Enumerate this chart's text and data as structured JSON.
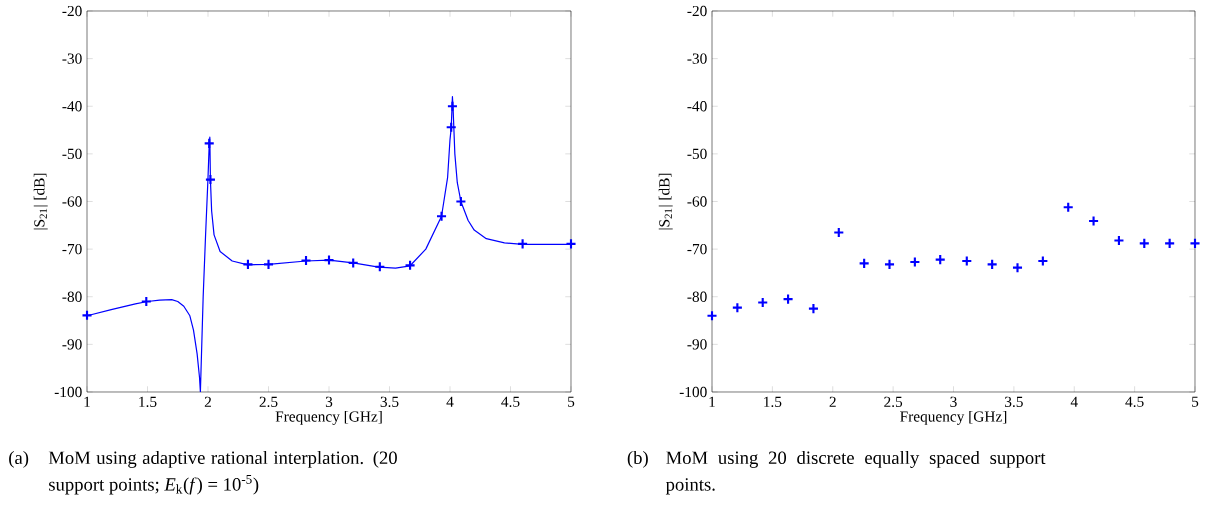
{
  "chart_data": [
    {
      "type": "line",
      "xlabel": "Frequency [GHz]",
      "ylabel": "|S$_{21}$| [dB]",
      "xlim": [
        1,
        5
      ],
      "ylim": [
        -100,
        -20
      ],
      "xticks": [
        1,
        1.5,
        2,
        2.5,
        3,
        3.5,
        4,
        4.5,
        5
      ],
      "yticks": [
        -100,
        -90,
        -80,
        -70,
        -60,
        -50,
        -40,
        -30,
        -20
      ],
      "grid": false,
      "series": [
        {
          "color": "#0000ff",
          "marker": "none",
          "line_style": "solid",
          "x": [
            1,
            1.2,
            1.4,
            1.5,
            1.6,
            1.7,
            1.75,
            1.8,
            1.85,
            1.88,
            1.91,
            1.93,
            1.937,
            1.96,
            1.98,
            2.0,
            2.01,
            2.015,
            2.02,
            2.03,
            2.05,
            2.1,
            2.2,
            2.33,
            2.5,
            2.81,
            3.0,
            3.2,
            3.41,
            3.55,
            3.67,
            3.8,
            3.93,
            3.98,
            4.0,
            4.01,
            4.02,
            4.025,
            4.04,
            4.06,
            4.09,
            4.15,
            4.2,
            4.3,
            4.45,
            4.6,
            5
          ],
          "values": [
            -84,
            -82.7,
            -81.5,
            -81,
            -80.7,
            -80.6,
            -81,
            -82,
            -84,
            -87,
            -92,
            -97,
            -100,
            -80,
            -67,
            -55,
            -48,
            -46.5,
            -55.5,
            -62,
            -67,
            -70.5,
            -72.5,
            -73.3,
            -73.2,
            -72.5,
            -72.3,
            -72.9,
            -73.8,
            -74,
            -73.5,
            -70,
            -63.1,
            -55,
            -47,
            -44.6,
            -38,
            -40.1,
            -50,
            -56,
            -60,
            -64,
            -66,
            -67.8,
            -68.7,
            -69,
            -69
          ]
        },
        {
          "type": "scatter",
          "color": "#0000ff",
          "marker": "cross",
          "x": [
            1,
            1.49,
            2.01,
            2.02,
            2.33,
            2.5,
            2.81,
            3.0,
            3.2,
            3.42,
            3.67,
            3.93,
            4.01,
            4.02,
            4.09,
            4.6,
            5
          ],
          "values": [
            -83.9,
            -81,
            -47.8,
            -55.4,
            -73.2,
            -73.2,
            -72.4,
            -72.3,
            -72.9,
            -73.7,
            -73.4,
            -63.1,
            -44.4,
            -40,
            -60,
            -68.9,
            -68.9
          ]
        }
      ],
      "annotations": [
        "(a)",
        "MoM using adaptive rational interplation. (20 support points; *E*$_{k}$(*f*) = 10$^{-5}$)"
      ]
    },
    {
      "type": "scatter",
      "xlabel": "Frequency [GHz]",
      "ylabel": "|S$_{21}$| [dB]",
      "xlim": [
        1,
        5
      ],
      "ylim": [
        -100,
        -20
      ],
      "xticks": [
        1,
        1.5,
        2,
        2.5,
        3,
        3.5,
        4,
        4.5,
        5
      ],
      "yticks": [
        -100,
        -90,
        -80,
        -70,
        -60,
        -50,
        -40,
        -30,
        -20
      ],
      "grid": false,
      "series": [
        {
          "color": "#0000ff",
          "marker": "cross",
          "x": [
            1,
            1.21,
            1.42,
            1.63,
            1.84,
            2.05,
            2.26,
            2.47,
            2.68,
            2.89,
            3.11,
            3.32,
            3.53,
            3.74,
            3.95,
            4.16,
            4.37,
            4.58,
            4.79,
            5
          ],
          "values": [
            -84,
            -82.3,
            -81.2,
            -80.5,
            -82.5,
            -66.5,
            -73,
            -73.2,
            -72.7,
            -72.2,
            -72.5,
            -73.2,
            -73.9,
            -72.5,
            -61.2,
            -64.1,
            -68.2,
            -68.8,
            -68.8,
            -68.8
          ]
        }
      ],
      "annotations": [
        "(b)",
        "MoM using 20 discrete equally spaced support points."
      ]
    }
  ]
}
